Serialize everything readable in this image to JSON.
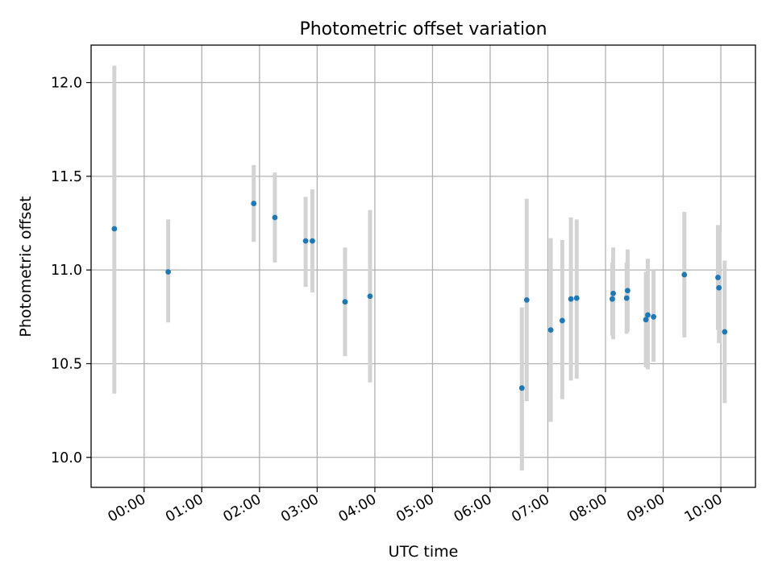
{
  "chart_data": {
    "type": "scatter",
    "title": "Photometric offset variation",
    "xlabel": "UTC time",
    "ylabel": "Photometric offset",
    "x_unit": "hours",
    "xlim": [
      "-0.92",
      "10.6"
    ],
    "ylim": [
      9.84,
      12.2
    ],
    "grid": true,
    "x_ticks": [
      {
        "value": 0,
        "label": "00:00"
      },
      {
        "value": 1,
        "label": "01:00"
      },
      {
        "value": 2,
        "label": "02:00"
      },
      {
        "value": 3,
        "label": "03:00"
      },
      {
        "value": 4,
        "label": "04:00"
      },
      {
        "value": 5,
        "label": "05:00"
      },
      {
        "value": 6,
        "label": "06:00"
      },
      {
        "value": 7,
        "label": "07:00"
      },
      {
        "value": 8,
        "label": "08:00"
      },
      {
        "value": 9,
        "label": "09:00"
      },
      {
        "value": 10,
        "label": "10:00"
      }
    ],
    "y_ticks": [
      {
        "value": 10.0,
        "label": "10.0"
      },
      {
        "value": 10.5,
        "label": "10.5"
      },
      {
        "value": 11.0,
        "label": "11.0"
      },
      {
        "value": 11.5,
        "label": "11.5"
      },
      {
        "value": 12.0,
        "label": "12.0"
      }
    ],
    "series": [
      {
        "color": "#1f77b4",
        "error_color": "#d3d3d3",
        "points": [
          {
            "x": "23:29",
            "y": 11.22,
            "low": 10.34,
            "high": 12.09
          },
          {
            "x": "00:25",
            "y": 10.99,
            "low": 10.72,
            "high": 11.27
          },
          {
            "x": "01:54",
            "y": 11.355,
            "low": 11.15,
            "high": 11.56
          },
          {
            "x": "02:16",
            "y": 11.28,
            "low": 11.04,
            "high": 11.52
          },
          {
            "x": "02:48",
            "y": 11.155,
            "low": 10.91,
            "high": 11.39
          },
          {
            "x": "02:55",
            "y": 11.155,
            "low": 10.88,
            "high": 11.43
          },
          {
            "x": "03:29",
            "y": 10.83,
            "low": 10.54,
            "high": 11.12
          },
          {
            "x": "03:55",
            "y": 10.86,
            "low": 10.4,
            "high": 11.32
          },
          {
            "x": "06:33",
            "y": 10.37,
            "low": 9.93,
            "high": 10.8
          },
          {
            "x": "06:38",
            "y": 10.84,
            "low": 10.3,
            "high": 11.38
          },
          {
            "x": "07:03",
            "y": 10.68,
            "low": 10.19,
            "high": 11.17
          },
          {
            "x": "07:15",
            "y": 10.73,
            "low": 10.31,
            "high": 11.16
          },
          {
            "x": "07:24",
            "y": 10.845,
            "low": 10.41,
            "high": 11.28
          },
          {
            "x": "07:30",
            "y": 10.85,
            "low": 10.42,
            "high": 11.27
          },
          {
            "x": "08:07",
            "y": 10.845,
            "low": 10.65,
            "high": 11.04
          },
          {
            "x": "08:08",
            "y": 10.875,
            "low": 10.63,
            "high": 11.12
          },
          {
            "x": "08:22",
            "y": 10.85,
            "low": 10.66,
            "high": 11.04
          },
          {
            "x": "08:23",
            "y": 10.89,
            "low": 10.67,
            "high": 11.11
          },
          {
            "x": "08:42",
            "y": 10.735,
            "low": 10.48,
            "high": 10.99
          },
          {
            "x": "08:44",
            "y": 10.76,
            "low": 10.47,
            "high": 11.06
          },
          {
            "x": "08:50",
            "y": 10.75,
            "low": 10.51,
            "high": 11.0
          },
          {
            "x": "09:22",
            "y": 10.975,
            "low": 10.64,
            "high": 11.31
          },
          {
            "x": "09:57",
            "y": 10.96,
            "low": 10.68,
            "high": 11.24
          },
          {
            "x": "09:58",
            "y": 10.905,
            "low": 10.61,
            "high": 11.2
          },
          {
            "x": "10:04",
            "y": 10.67,
            "low": 10.29,
            "high": 11.05
          }
        ]
      }
    ]
  }
}
